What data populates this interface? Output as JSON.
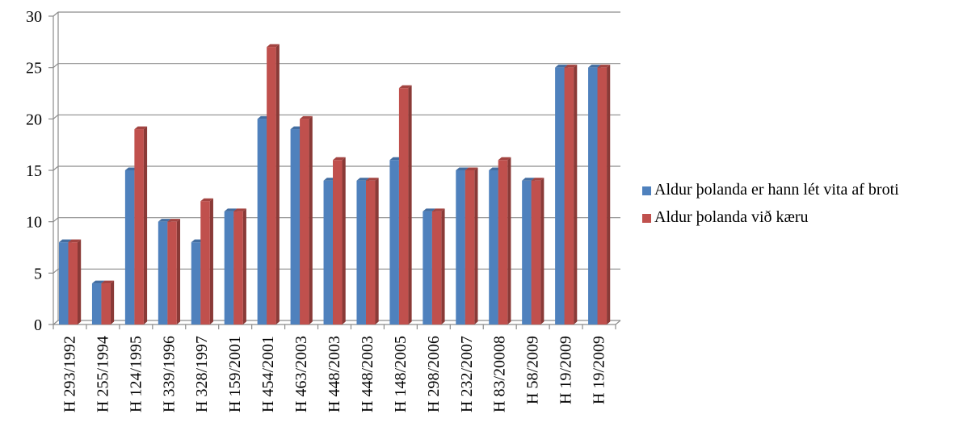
{
  "chart_data": {
    "type": "bar",
    "categories": [
      "H 293/1992",
      "H 255/1994",
      "H 124/1995",
      "H 339/1996",
      "H 328/1997",
      "H 159/2001",
      "H 454/2001",
      "H 463/2003",
      "H 448/2003",
      "H 448/2003",
      "H 148/2005",
      "H 298/2006",
      "H 232/2007",
      "H 83/20008",
      "H 58/2009",
      "H 19/2009",
      "H 19/2009"
    ],
    "series": [
      {
        "name": "Aldur þolanda er hann lét vita af broti",
        "color": "#4F81BD",
        "values": [
          8,
          4,
          15,
          10,
          8,
          11,
          20,
          19,
          14,
          14,
          16,
          11,
          15,
          15,
          14,
          25,
          25
        ]
      },
      {
        "name": "Aldur þolanda við kæru",
        "color": "#C0504D",
        "values": [
          8,
          4,
          19,
          10,
          12,
          11,
          27,
          20,
          16,
          14,
          23,
          11,
          15,
          16,
          14,
          25,
          25
        ]
      }
    ],
    "yticks": [
      "0",
      "5",
      "10",
      "15",
      "20",
      "25",
      "30"
    ],
    "ylim": [
      0,
      30
    ],
    "grid": true,
    "legend_position": "right"
  }
}
